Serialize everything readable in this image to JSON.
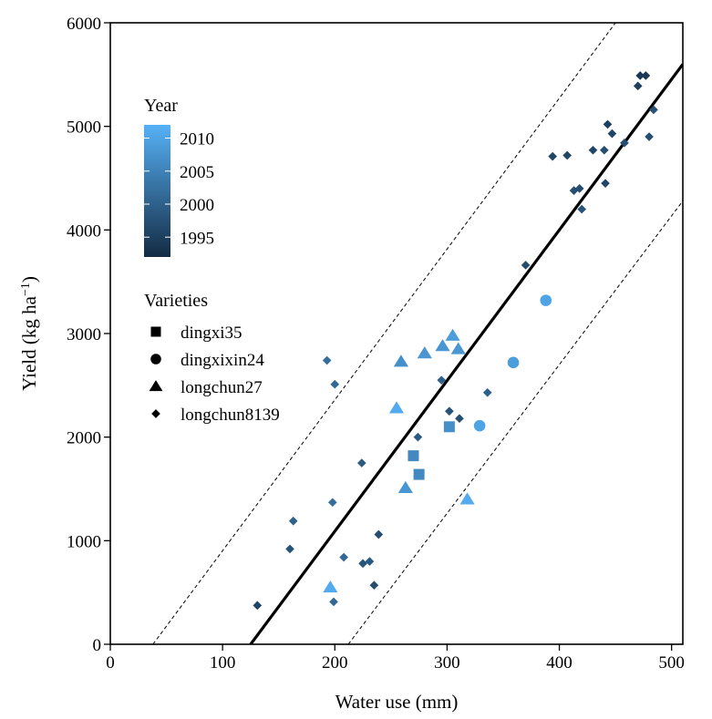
{
  "chart_data": {
    "type": "scatter",
    "xlabel": "Water use (mm)",
    "ylabel": "Yield (kg ha",
    "ylabel_sup": "−1",
    "ylabel_close": ")",
    "xlim": [
      0,
      510
    ],
    "ylim": [
      0,
      6000
    ],
    "x_ticks": [
      0,
      100,
      200,
      300,
      400,
      500
    ],
    "y_ticks": [
      0,
      1000,
      2000,
      3000,
      4000,
      5000,
      6000
    ],
    "grid": false,
    "legend_placement": "top-left",
    "color_legend": {
      "title": "Year",
      "min": 1992,
      "max": 2012,
      "ticks": [
        2010,
        2005,
        2000,
        1995
      ],
      "color_low": "#132b43",
      "color_high": "#56b1f7"
    },
    "shape_legend": {
      "title": "Varieties",
      "entries": [
        {
          "label": "dingxi35",
          "shape": "square"
        },
        {
          "label": "dingxixin24",
          "shape": "circle"
        },
        {
          "label": "longchun27",
          "shape": "triangle"
        },
        {
          "label": "longchun8139",
          "shape": "diamond"
        }
      ]
    },
    "fit_line": {
      "x1": 125,
      "y1": 0,
      "x2": 510,
      "y2": 5600
    },
    "upper_band": {
      "x1": 38,
      "y1": 0,
      "x2": 450,
      "y2": 6000
    },
    "lower_band": {
      "x1": 212,
      "y1": 0,
      "x2": 510,
      "y2": 4280
    },
    "points": [
      {
        "x": 131,
        "y": 375,
        "variety": "longchun8139",
        "year": 1996
      },
      {
        "x": 160,
        "y": 920,
        "variety": "longchun8139",
        "year": 1998
      },
      {
        "x": 163,
        "y": 1190,
        "variety": "longchun8139",
        "year": 2000
      },
      {
        "x": 193,
        "y": 2740,
        "variety": "longchun8139",
        "year": 2002
      },
      {
        "x": 198,
        "y": 1370,
        "variety": "longchun8139",
        "year": 2002
      },
      {
        "x": 199,
        "y": 410,
        "variety": "longchun8139",
        "year": 2001
      },
      {
        "x": 200,
        "y": 2510,
        "variety": "longchun8139",
        "year": 2001
      },
      {
        "x": 208,
        "y": 840,
        "variety": "longchun8139",
        "year": 2001
      },
      {
        "x": 224,
        "y": 1750,
        "variety": "longchun8139",
        "year": 1999
      },
      {
        "x": 225,
        "y": 780,
        "variety": "longchun8139",
        "year": 1998
      },
      {
        "x": 231,
        "y": 800,
        "variety": "longchun8139",
        "year": 1999
      },
      {
        "x": 235,
        "y": 570,
        "variety": "longchun8139",
        "year": 1997
      },
      {
        "x": 239,
        "y": 1060,
        "variety": "longchun8139",
        "year": 1997
      },
      {
        "x": 274,
        "y": 2000,
        "variety": "longchun8139",
        "year": 1999
      },
      {
        "x": 295,
        "y": 2550,
        "variety": "longchun8139",
        "year": 2000
      },
      {
        "x": 302,
        "y": 2250,
        "variety": "longchun8139",
        "year": 1998
      },
      {
        "x": 311,
        "y": 2180,
        "variety": "longchun8139",
        "year": 1997
      },
      {
        "x": 336,
        "y": 2430,
        "variety": "longchun8139",
        "year": 2000
      },
      {
        "x": 370,
        "y": 3660,
        "variety": "longchun8139",
        "year": 1997
      },
      {
        "x": 394,
        "y": 4710,
        "variety": "longchun8139",
        "year": 1996
      },
      {
        "x": 407,
        "y": 4720,
        "variety": "longchun8139",
        "year": 1996
      },
      {
        "x": 413,
        "y": 4380,
        "variety": "longchun8139",
        "year": 1997
      },
      {
        "x": 418,
        "y": 4400,
        "variety": "longchun8139",
        "year": 1997
      },
      {
        "x": 420,
        "y": 4200,
        "variety": "longchun8139",
        "year": 1998
      },
      {
        "x": 430,
        "y": 4770,
        "variety": "longchun8139",
        "year": 1996
      },
      {
        "x": 440,
        "y": 4770,
        "variety": "longchun8139",
        "year": 1997
      },
      {
        "x": 441,
        "y": 4450,
        "variety": "longchun8139",
        "year": 1996
      },
      {
        "x": 443,
        "y": 5020,
        "variety": "longchun8139",
        "year": 1995
      },
      {
        "x": 447,
        "y": 4930,
        "variety": "longchun8139",
        "year": 1996
      },
      {
        "x": 458,
        "y": 4840,
        "variety": "longchun8139",
        "year": 1997
      },
      {
        "x": 470,
        "y": 5390,
        "variety": "longchun8139",
        "year": 1995
      },
      {
        "x": 472,
        "y": 5490,
        "variety": "longchun8139",
        "year": 1994
      },
      {
        "x": 477,
        "y": 5490,
        "variety": "longchun8139",
        "year": 1994
      },
      {
        "x": 480,
        "y": 4900,
        "variety": "longchun8139",
        "year": 1997
      },
      {
        "x": 484,
        "y": 5160,
        "variety": "longchun8139",
        "year": 1998
      },
      {
        "x": 270,
        "y": 1820,
        "variety": "dingxi35",
        "year": 2006
      },
      {
        "x": 275,
        "y": 1640,
        "variety": "dingxi35",
        "year": 2006
      },
      {
        "x": 302,
        "y": 2100,
        "variety": "dingxi35",
        "year": 2007
      },
      {
        "x": 329,
        "y": 2110,
        "variety": "dingxixin24",
        "year": 2010
      },
      {
        "x": 359,
        "y": 2720,
        "variety": "dingxixin24",
        "year": 2009
      },
      {
        "x": 388,
        "y": 3320,
        "variety": "dingxixin24",
        "year": 2010
      },
      {
        "x": 196,
        "y": 550,
        "variety": "longchun27",
        "year": 2011
      },
      {
        "x": 255,
        "y": 2280,
        "variety": "longchun27",
        "year": 2011
      },
      {
        "x": 259,
        "y": 2730,
        "variety": "longchun27",
        "year": 2007
      },
      {
        "x": 263,
        "y": 1510,
        "variety": "longchun27",
        "year": 2008
      },
      {
        "x": 280,
        "y": 2810,
        "variety": "longchun27",
        "year": 2008
      },
      {
        "x": 296,
        "y": 2880,
        "variety": "longchun27",
        "year": 2008
      },
      {
        "x": 305,
        "y": 2980,
        "variety": "longchun27",
        "year": 2009
      },
      {
        "x": 310,
        "y": 2850,
        "variety": "longchun27",
        "year": 2008
      },
      {
        "x": 318,
        "y": 1400,
        "variety": "longchun27",
        "year": 2011
      }
    ]
  }
}
